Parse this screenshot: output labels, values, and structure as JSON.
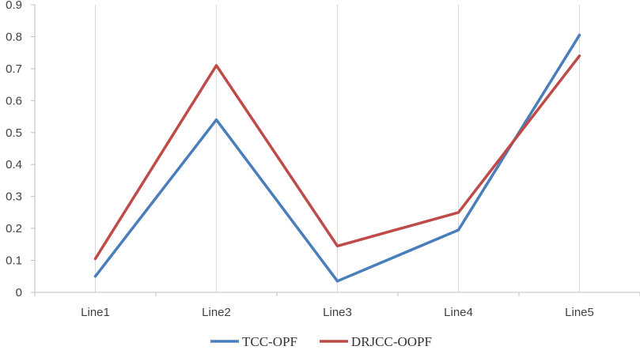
{
  "chart_data": {
    "type": "line",
    "title": "",
    "xlabel": "",
    "ylabel": "",
    "categories": [
      "Line1",
      "Line2",
      "Line3",
      "Line4",
      "Line5"
    ],
    "ylim": [
      0,
      0.9
    ],
    "yticks": [
      0,
      0.1,
      0.2,
      0.3,
      0.4,
      0.5,
      0.6,
      0.7,
      0.8,
      0.9
    ],
    "ytick_labels": [
      "0",
      "0.1",
      "0.2",
      "0.3",
      "0.4",
      "0.5",
      "0.6",
      "0.7",
      "0.8",
      "0.9"
    ],
    "grid": "vertical",
    "legend_position": "bottom",
    "series": [
      {
        "name": "TCC-OPF",
        "color": "#4a7ebb",
        "values": [
          0.05,
          0.54,
          0.035,
          0.195,
          0.805
        ]
      },
      {
        "name": "DRJCC-OOPF",
        "color": "#be4b48",
        "values": [
          0.105,
          0.71,
          0.145,
          0.25,
          0.74
        ]
      }
    ]
  }
}
